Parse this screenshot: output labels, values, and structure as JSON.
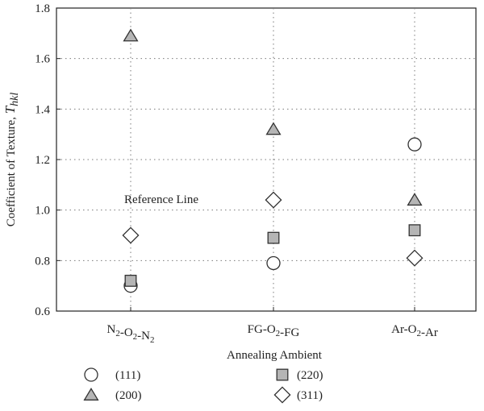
{
  "chart_data": {
    "type": "scatter",
    "title": "",
    "xlabel": "Annealing Ambient",
    "ylabel_prefix": "Coefficient of Texture, ",
    "ylabel_symbol": "T",
    "ylabel_subscript": "hkl",
    "categories": [
      {
        "base": [
          "N",
          "-O",
          "-N"
        ],
        "subs": [
          "2",
          "2",
          "2"
        ]
      },
      {
        "base": [
          "FG-O",
          "-FG"
        ],
        "subs": [
          "2",
          ""
        ]
      },
      {
        "base": [
          "Ar-O",
          "-Ar"
        ],
        "subs": [
          "2",
          ""
        ]
      }
    ],
    "ylim": [
      0.6,
      1.8
    ],
    "yticks": [
      "0.6",
      "0.8",
      "1.0",
      "1.2",
      "1.4",
      "1.6",
      "1.8"
    ],
    "grid": true,
    "annotation": {
      "text": "Reference Line",
      "y": 1.0
    },
    "series": [
      {
        "name": "(111)",
        "marker": "circle",
        "color": "#ffffff",
        "values": [
          0.7,
          0.79,
          1.26
        ]
      },
      {
        "name": "(220)",
        "marker": "square",
        "color": "#b5b5b5",
        "values": [
          0.72,
          0.89,
          0.92
        ]
      },
      {
        "name": "(200)",
        "marker": "triangle",
        "color": "#b5b5b5",
        "values": [
          1.69,
          1.32,
          1.04
        ]
      },
      {
        "name": "(311)",
        "marker": "diamond",
        "color": "#ffffff",
        "values": [
          0.9,
          1.04,
          0.81
        ]
      }
    ],
    "legend_position": "bottom"
  }
}
